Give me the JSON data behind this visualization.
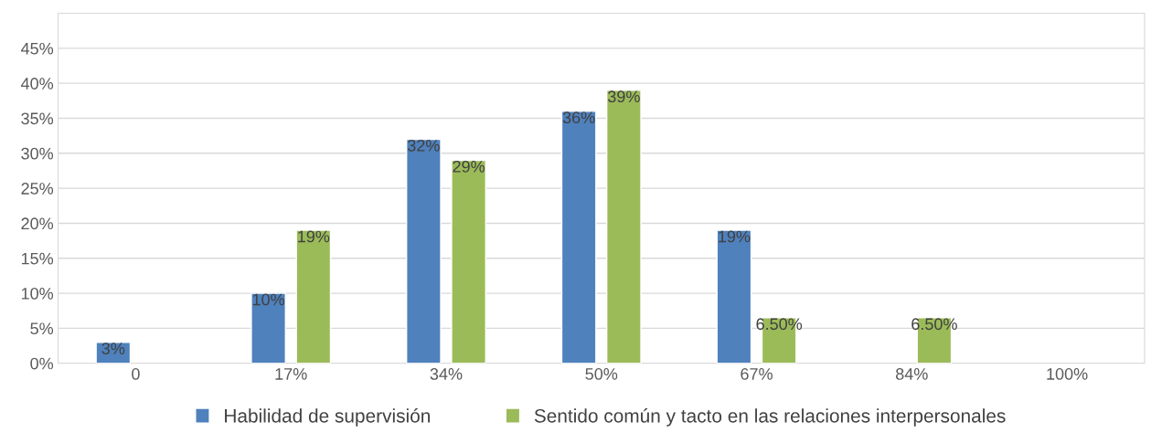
{
  "chart_data": {
    "type": "bar",
    "categories": [
      "0",
      "17%",
      "34%",
      "50%",
      "67%",
      "84%",
      "100%"
    ],
    "series": [
      {
        "name": "Habilidad de supervisión",
        "color": "#4f81bd",
        "values": [
          3,
          10,
          32,
          36,
          19,
          null,
          null
        ],
        "value_labels": [
          "3%",
          "10%",
          "32%",
          "36%",
          "19%",
          null,
          null
        ]
      },
      {
        "name": "Sentido común y tacto en las relaciones interpersonales",
        "color": "#9bbb59",
        "values": [
          null,
          19,
          29,
          39,
          6.5,
          6.5,
          null
        ],
        "value_labels": [
          null,
          "19%",
          "29%",
          "39%",
          "6.50%",
          "6.50%",
          null
        ]
      }
    ],
    "ylim": [
      0,
      50
    ],
    "yticks": [
      {
        "value": 0,
        "label": "0%"
      },
      {
        "value": 5,
        "label": "5%"
      },
      {
        "value": 10,
        "label": "10%"
      },
      {
        "value": 15,
        "label": "15%"
      },
      {
        "value": 20,
        "label": "20%"
      },
      {
        "value": 25,
        "label": "25%"
      },
      {
        "value": 30,
        "label": "30%"
      },
      {
        "value": 35,
        "label": "35%"
      },
      {
        "value": 40,
        "label": "40%"
      },
      {
        "value": 45,
        "label": "45%"
      }
    ],
    "grid": "y",
    "legend": "bottom"
  }
}
